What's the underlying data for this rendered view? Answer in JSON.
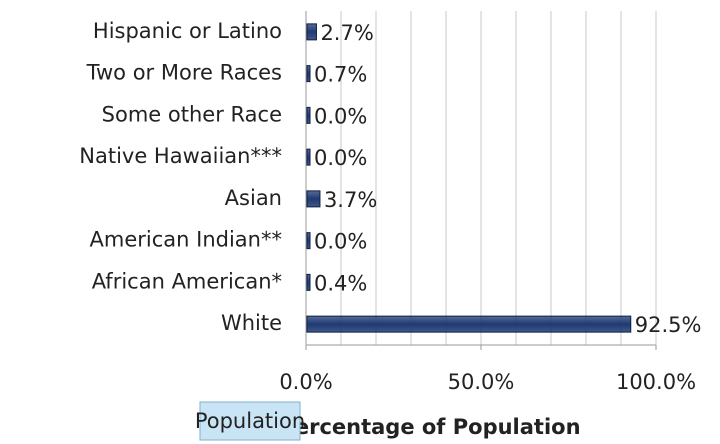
{
  "chart_data": {
    "type": "hbar",
    "categories": [
      "Hispanic or Latino",
      "Two or More Races",
      "Some other Race",
      "Native Hawaiian***",
      "Asian",
      "American Indian**",
      "African American*",
      "White"
    ],
    "series": [
      {
        "name": "Population",
        "color": "#1f3a73",
        "values": [
          2.7,
          0.7,
          0.0,
          0.0,
          3.7,
          0.0,
          0.4,
          92.5
        ],
        "value_labels": [
          "2.7%",
          "0.7%",
          "0.0%",
          "0.0%",
          "3.7%",
          "0.0%",
          "0.4%",
          "92.5%"
        ]
      }
    ],
    "xlim": [
      0,
      100
    ],
    "xticks": [
      {
        "value": 0,
        "label": "0.0%"
      },
      {
        "value": 50,
        "label": "50.0%"
      },
      {
        "value": 100,
        "label": "100.0%"
      }
    ],
    "grid_ticks": [
      0,
      10,
      20,
      30,
      40,
      50,
      60,
      70,
      80,
      90,
      100
    ],
    "grid": true,
    "x_label": "Percentage of Population",
    "legend": "bottom-left"
  }
}
